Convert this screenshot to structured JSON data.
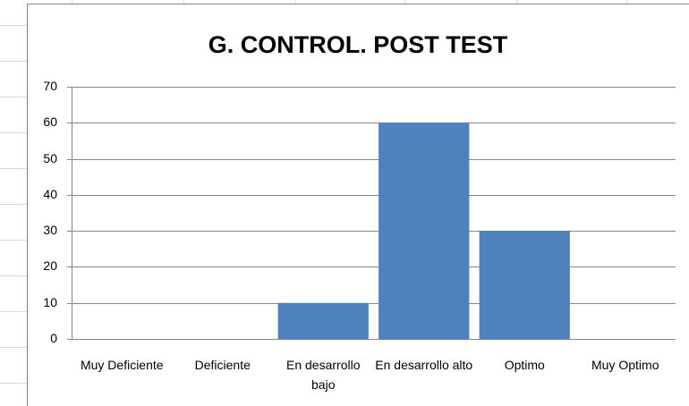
{
  "chart_data": {
    "type": "bar",
    "title": "G. CONTROL. POST TEST",
    "categories": [
      "Muy Deficiente",
      "Deficiente",
      "En desarrollo bajo",
      "En desarrollo alto",
      "Optimo",
      "Muy Optimo"
    ],
    "values": [
      0,
      0,
      10,
      60,
      30,
      0
    ],
    "color": "#4f81bd",
    "ylim": [
      0,
      70
    ],
    "yticks": [
      0,
      10,
      20,
      30,
      40,
      50,
      60,
      70
    ],
    "grid": true
  }
}
